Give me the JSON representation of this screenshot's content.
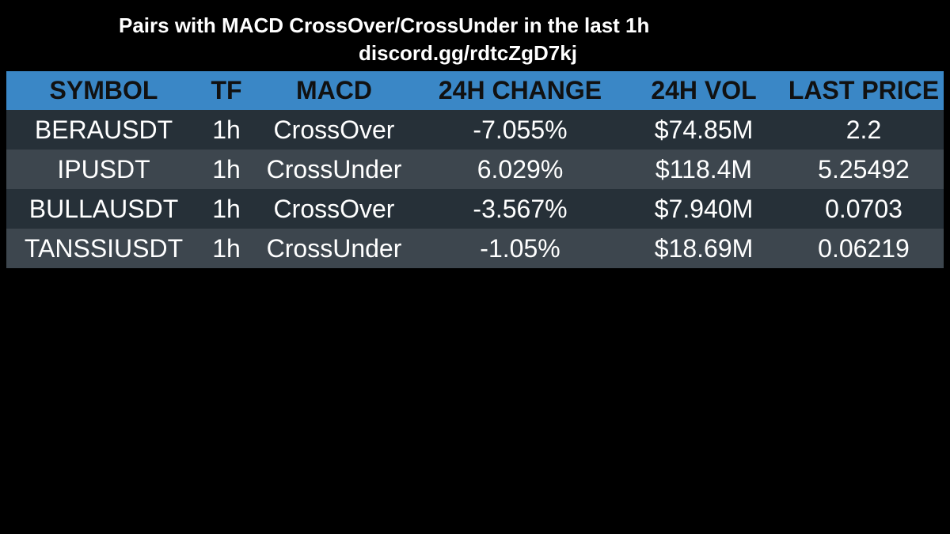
{
  "header": {
    "title": "Pairs with MACD CrossOver/CrossUnder in the last 1h",
    "subtitle": "discord.gg/rdtcZgD7kj"
  },
  "table": {
    "columns": [
      "SYMBOL",
      "TF",
      "MACD",
      "24H CHANGE",
      "24H VOL",
      "LAST PRICE"
    ],
    "rows": [
      [
        "BERAUSDT",
        "1h",
        "CrossOver",
        "-7.055%",
        "$74.85M",
        "2.2"
      ],
      [
        "IPUSDT",
        "1h",
        "CrossUnder",
        "6.029%",
        "$118.4M",
        "5.25492"
      ],
      [
        "BULLAUSDT",
        "1h",
        "CrossOver",
        "-3.567%",
        "$7.940M",
        "0.0703"
      ],
      [
        "TANSSIUSDT",
        "1h",
        "CrossUnder",
        "-1.05%",
        "$18.69M",
        "0.06219"
      ]
    ]
  },
  "colors": {
    "header_bg": "#3a87c6",
    "row_dark": "#263038",
    "row_light": "#3d464e",
    "background": "#000000"
  }
}
